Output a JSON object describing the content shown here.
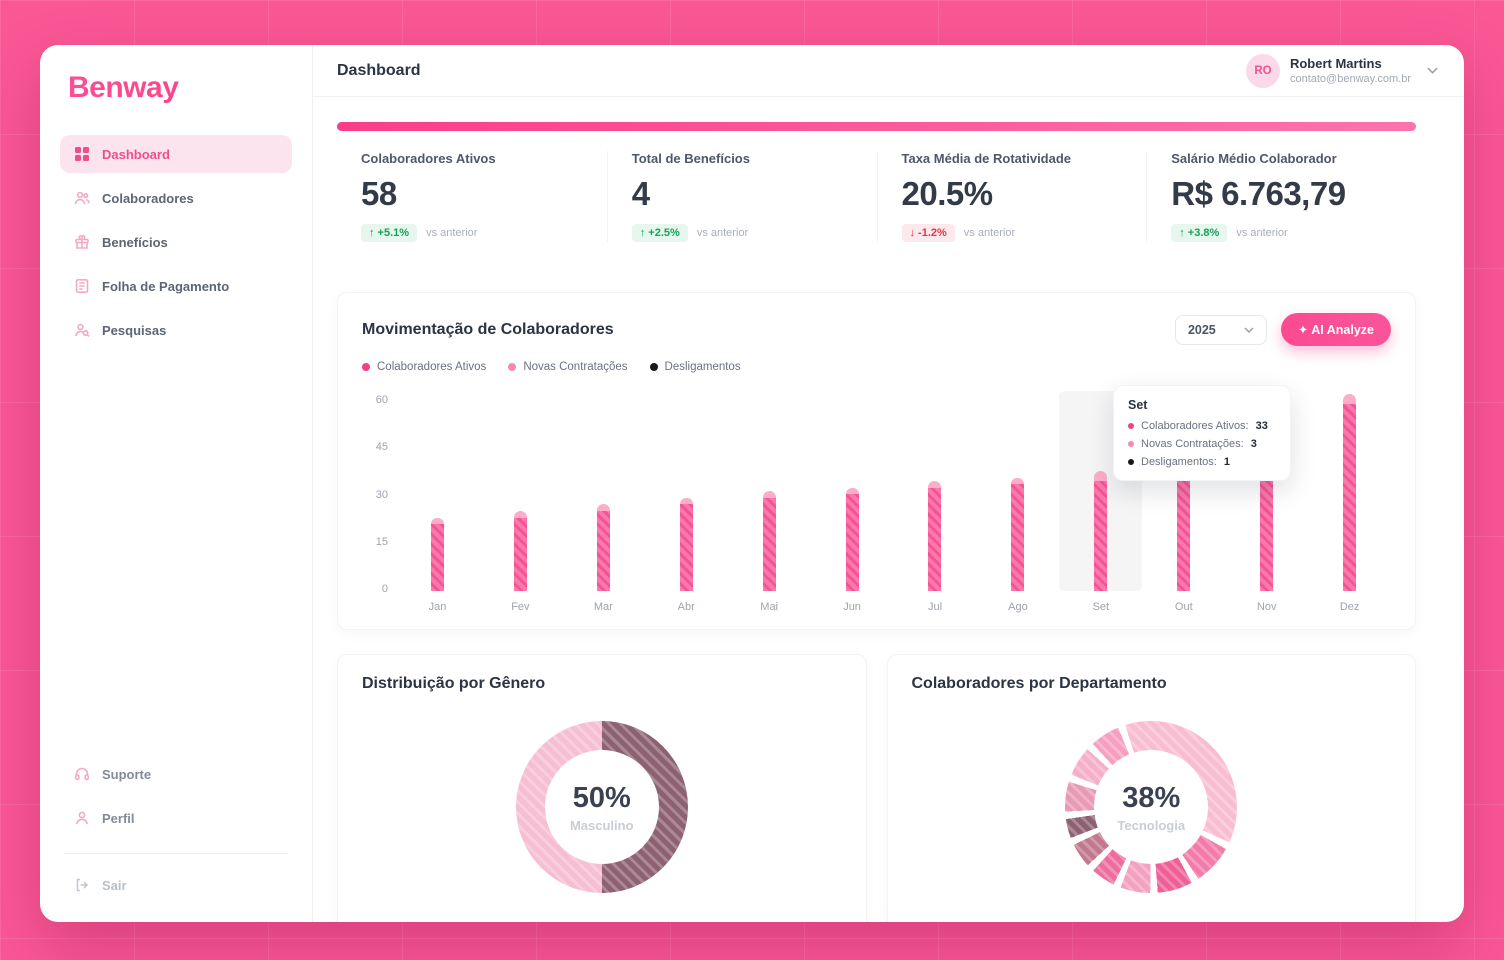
{
  "app": {
    "logo": "Benway"
  },
  "header": {
    "title": "Dashboard",
    "user": {
      "initials": "RO",
      "name": "Robert Martins",
      "email": "contato@benway.com.br"
    }
  },
  "sidebar": {
    "items": [
      {
        "label": "Dashboard",
        "icon": "grid-icon",
        "active": true
      },
      {
        "label": "Colaboradores",
        "icon": "users-icon",
        "active": false
      },
      {
        "label": "Benefícios",
        "icon": "gift-icon",
        "active": false
      },
      {
        "label": "Folha de Pagamento",
        "icon": "payroll-icon",
        "active": false
      },
      {
        "label": "Pesquisas",
        "icon": "search-person-icon",
        "active": false
      }
    ],
    "footer_items": [
      {
        "label": "Suporte",
        "icon": "headset-icon"
      },
      {
        "label": "Perfil",
        "icon": "user-icon"
      },
      {
        "label": "Sair",
        "icon": "logout-icon"
      }
    ]
  },
  "kpis": [
    {
      "label": "Colaboradores Ativos",
      "value": "58",
      "delta": "↑ +5.1%",
      "direction": "up",
      "note": "vs anterior"
    },
    {
      "label": "Total de Benefícios",
      "value": "4",
      "delta": "↑ +2.5%",
      "direction": "up",
      "note": "vs anterior"
    },
    {
      "label": "Taxa Média de Rotatividade",
      "value": "20.5%",
      "delta": "↓ -1.2%",
      "direction": "down",
      "note": "vs anterior"
    },
    {
      "label": "Salário Médio Colaborador",
      "value": "R$ 6.763,79",
      "delta": "↑ +3.8%",
      "direction": "up",
      "note": "vs anterior"
    }
  ],
  "movement": {
    "title": "Movimentação de Colaboradores",
    "year": "2025",
    "ai_button": "✦ AI Analyze",
    "legend": [
      "Colaboradores Ativos",
      "Novas Contratações",
      "Desligamentos"
    ],
    "tooltip": {
      "month": "Set",
      "rows": [
        {
          "label": "Colaboradores Ativos:",
          "value": "33",
          "color": "#F43F87"
        },
        {
          "label": "Novas Contratações:",
          "value": "3",
          "color": "#F887B4"
        },
        {
          "label": "Desligamentos:",
          "value": "1",
          "color": "#15181E"
        }
      ]
    }
  },
  "gender": {
    "title": "Distribuição por Gênero"
  },
  "department": {
    "title": "Colaboradores por Departamento"
  },
  "chart_data": [
    {
      "type": "bar",
      "title": "Movimentação de Colaboradores",
      "x": [
        "Jan",
        "Fev",
        "Mar",
        "Abr",
        "Mai",
        "Jun",
        "Jul",
        "Ago",
        "Set",
        "Out",
        "Nov",
        "Dez"
      ],
      "series": [
        {
          "name": "Colaboradores Ativos",
          "color": "#F55395",
          "values": [
            20,
            22,
            24,
            26,
            28,
            29,
            31,
            32,
            33,
            36,
            41,
            56
          ]
        },
        {
          "name": "Novas Contratações",
          "color": "#FBADC9",
          "values": [
            2,
            2,
            2,
            2,
            2,
            2,
            2,
            2,
            3,
            3,
            3,
            3
          ]
        },
        {
          "name": "Desligamentos",
          "color": "#15181E",
          "values": [
            1,
            1,
            1,
            1,
            1,
            1,
            1,
            1,
            1,
            1,
            1,
            1
          ]
        }
      ],
      "ylim": [
        0,
        60
      ],
      "yticks": [
        60,
        45,
        30,
        15,
        0
      ],
      "highlight_x": "Set",
      "grid": false,
      "legend_position": "top"
    },
    {
      "type": "pie",
      "title": "Distribuição por Gênero",
      "segments": [
        {
          "label": "Masculino",
          "value": 50,
          "color": "#8D6172"
        },
        {
          "label": "",
          "value": 50,
          "color": "#F6BED3"
        }
      ],
      "center": {
        "value": "50%",
        "label": "Masculino"
      },
      "start_deg": 0,
      "gap": 0
    },
    {
      "type": "pie",
      "title": "Colaboradores por Departamento",
      "segments": [
        {
          "label": "Tecnologia",
          "value": 38,
          "color": "#F9BDD2"
        },
        {
          "label": "",
          "value": 9,
          "color": "#F27BA9"
        },
        {
          "label": "",
          "value": 8,
          "color": "#EF5E95"
        },
        {
          "label": "",
          "value": 7,
          "color": "#F4A0C0"
        },
        {
          "label": "",
          "value": 6,
          "color": "#EE6D9F"
        },
        {
          "label": "",
          "value": 6,
          "color": "#C2788F"
        },
        {
          "label": "",
          "value": 5,
          "color": "#8D6172"
        },
        {
          "label": "",
          "value": 7,
          "color": "#E89AB4"
        },
        {
          "label": "",
          "value": 7,
          "color": "#F6AFC9"
        },
        {
          "label": "",
          "value": 7,
          "color": "#F79FC0"
        }
      ],
      "center": {
        "value": "38%",
        "label": "Tecnologia"
      },
      "start_deg": -20,
      "gap": 1.4
    }
  ]
}
